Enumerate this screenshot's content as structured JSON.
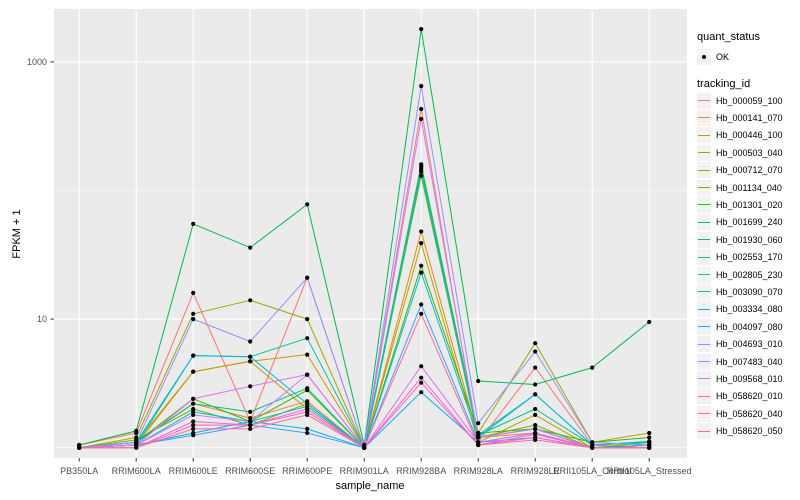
{
  "figure": {
    "panel_bg": "#EBEBEB",
    "grid_color": "#FFFFFF",
    "tick_text_color": "#4D4D4D",
    "axis_title_color": "#000000",
    "point_color": "#000000",
    "legend_key_bg": "#F2F2F2"
  },
  "legend": {
    "quant_status_title": "quant_status",
    "quant_status_items": [
      {
        "label": "OK",
        "marker": "point"
      }
    ],
    "tracking_id_title": "tracking_id"
  },
  "chart_data": {
    "type": "line",
    "title": "",
    "xlabel": "sample_name",
    "ylabel": "FPKM + 1",
    "y_scale": "log10",
    "grid": true,
    "legend_position": "right",
    "ylim": [
      0.85,
      2400
    ],
    "y_major_ticks": [
      10,
      1000
    ],
    "y_major_tick_labels": [
      "10",
      "1000"
    ],
    "y_minor_gridlines": [
      1,
      100
    ],
    "categories": [
      "PB350LA",
      "RRIM600LA",
      "RRIM600LE",
      "RRIM600SE",
      "RRIM600PE",
      "RRIM901LA",
      "RRIM928BA",
      "RRIM928LA",
      "RRIM928LE",
      "RRII105LA_Control",
      "RRII105LA_Stressed"
    ],
    "series": [
      {
        "name": "Hb_000059_100",
        "color": "#F8766D",
        "values": [
          1.05,
          1.3,
          16,
          1.6,
          21,
          1.0,
          430,
          1.1,
          4.2,
          1.05,
          1.0
        ]
      },
      {
        "name": "Hb_000141_070",
        "color": "#EA8331",
        "values": [
          1.0,
          1.1,
          2.2,
          1.7,
          2.3,
          1.0,
          150,
          1.2,
          1.3,
          1.0,
          1.0
        ]
      },
      {
        "name": "Hb_000446_100",
        "color": "#D89000",
        "values": [
          1.0,
          1.1,
          3.9,
          4.7,
          5.3,
          1.0,
          48,
          1.2,
          1.4,
          1.0,
          1.05
        ]
      },
      {
        "name": "Hb_000503_040",
        "color": "#C09B00",
        "values": [
          1.0,
          1.05,
          3.9,
          4.7,
          2.0,
          1.0,
          39,
          1.1,
          1.8,
          1.0,
          1.0
        ]
      },
      {
        "name": "Hb_000712_070",
        "color": "#A3A500",
        "values": [
          1.0,
          1.2,
          11,
          14,
          10,
          1.0,
          160,
          1.3,
          6.5,
          1.1,
          1.3
        ]
      },
      {
        "name": "Hb_001134_040",
        "color": "#7CAE00",
        "values": [
          1.0,
          1.15,
          2.0,
          1.5,
          2.2,
          1.0,
          130,
          1.2,
          1.5,
          1.0,
          1.1
        ]
      },
      {
        "name": "Hb_001301_020",
        "color": "#39B600",
        "values": [
          1.0,
          1.1,
          2.4,
          1.6,
          2.8,
          1.0,
          26,
          1.3,
          1.4,
          1.1,
          1.2
        ]
      },
      {
        "name": "Hb_001699_240",
        "color": "#00BB4E",
        "values": [
          1.05,
          1.35,
          55,
          36,
          78,
          1.05,
          1800,
          3.3,
          3.1,
          4.2,
          9.5
        ]
      },
      {
        "name": "Hb_001930_060",
        "color": "#00BF7D",
        "values": [
          1.0,
          1.1,
          2.2,
          1.9,
          2.9,
          1.0,
          155,
          1.25,
          2.0,
          1.05,
          1.1
        ]
      },
      {
        "name": "Hb_002553_170",
        "color": "#00C1A3",
        "values": [
          1.0,
          1.1,
          5.2,
          5.1,
          7.1,
          1.0,
          145,
          1.25,
          2.6,
          1.05,
          1.1
        ]
      },
      {
        "name": "Hb_002805_230",
        "color": "#00BFC4",
        "values": [
          1.0,
          1.05,
          1.9,
          1.6,
          2.1,
          1.0,
          140,
          1.2,
          1.4,
          1.0,
          1.05
        ]
      },
      {
        "name": "Hb_003090_070",
        "color": "#00BAE0",
        "values": [
          1.0,
          1.05,
          5.2,
          5.1,
          2.2,
          1.0,
          23,
          1.2,
          2.6,
          1.05,
          1.12
        ]
      },
      {
        "name": "Hb_003334_080",
        "color": "#00B0F6",
        "values": [
          1.0,
          1.05,
          1.3,
          1.6,
          1.4,
          1.0,
          2.7,
          1.1,
          1.3,
          1.0,
          1.0
        ]
      },
      {
        "name": "Hb_004097_080",
        "color": "#35A2FF",
        "values": [
          1.0,
          1.05,
          1.25,
          1.5,
          1.3,
          1.0,
          13,
          1.1,
          1.2,
          1.0,
          1.0
        ]
      },
      {
        "name": "Hb_004693_010",
        "color": "#9590FF",
        "values": [
          1.0,
          1.1,
          10,
          6.7,
          21,
          1.0,
          650,
          1.55,
          5.6,
          1.1,
          1.05
        ]
      },
      {
        "name": "Hb_007483_040",
        "color": "#C77CFF",
        "values": [
          1.0,
          1.05,
          1.8,
          1.6,
          3.7,
          1.0,
          360,
          1.2,
          1.4,
          1.0,
          1.0
        ]
      },
      {
        "name": "Hb_009568_010",
        "color": "#E76BF3",
        "values": [
          1.0,
          1.05,
          2.4,
          3.0,
          3.7,
          1.0,
          4.3,
          1.1,
          1.3,
          1.0,
          1.0
        ]
      },
      {
        "name": "Hb_058620_010",
        "color": "#FA62DB",
        "values": [
          1.0,
          1.0,
          1.6,
          1.5,
          2.0,
          1.0,
          3.5,
          1.05,
          1.27,
          1.0,
          1.0
        ]
      },
      {
        "name": "Hb_058620_040",
        "color": "#FF62BC",
        "values": [
          1.0,
          1.0,
          1.5,
          1.5,
          1.9,
          1.0,
          3.2,
          1.05,
          1.2,
          1.0,
          1.0
        ]
      },
      {
        "name": "Hb_058620_050",
        "color": "#FF6A98",
        "values": [
          1.0,
          1.0,
          1.4,
          1.4,
          1.8,
          1.0,
          11,
          1.05,
          1.15,
          1.0,
          1.0
        ]
      }
    ]
  }
}
